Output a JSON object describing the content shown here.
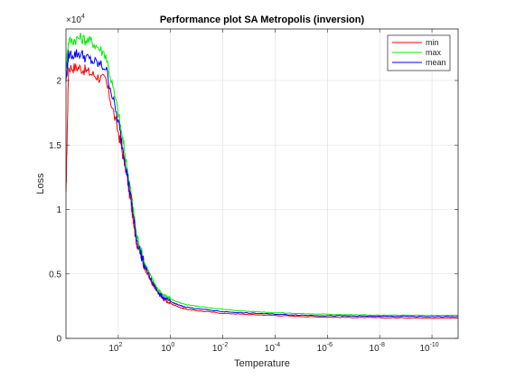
{
  "chart_data": {
    "type": "line",
    "title": "Performance plot SA Metropolis (inversion)",
    "xlabel": "Temperature",
    "ylabel": "Loss",
    "x_scale": "log",
    "x_direction": "reverse",
    "xlim": [
      10000,
      1e-11
    ],
    "ylim": [
      0,
      24000
    ],
    "y_multiplier_label": "×10",
    "y_multiplier_exponent": "4",
    "grid": true,
    "legend_position": "top-right",
    "x_ticks": [
      {
        "base": "10",
        "exp": "2",
        "value": 100
      },
      {
        "base": "10",
        "exp": "0",
        "value": 1
      },
      {
        "base": "10",
        "exp": "-2",
        "value": 0.01
      },
      {
        "base": "10",
        "exp": "-4",
        "value": 0.0001
      },
      {
        "base": "10",
        "exp": "-6",
        "value": 1e-06
      },
      {
        "base": "10",
        "exp": "-8",
        "value": 1e-08
      },
      {
        "base": "10",
        "exp": "-10",
        "value": 1e-10
      }
    ],
    "y_ticks": [
      {
        "label": "0",
        "value": 0
      },
      {
        "label": "0.5",
        "value": 5000
      },
      {
        "label": "1",
        "value": 10000
      },
      {
        "label": "1.5",
        "value": 15000
      },
      {
        "label": "2",
        "value": 20000
      }
    ],
    "x": [
      10000,
      8000,
      3000,
      1000,
      300,
      100,
      50,
      30,
      20,
      10,
      5,
      3,
      2,
      1,
      0.5,
      0.3,
      0.1,
      0.01,
      0.001,
      0.0001,
      1e-05,
      1e-06,
      1e-07,
      1e-08,
      1e-09,
      1e-10,
      1e-11
    ],
    "series": [
      {
        "name": "min",
        "color": "#ff0000",
        "values": [
          11000,
          21000,
          21000,
          20500,
          20000,
          16000,
          13000,
          10000,
          7500,
          5500,
          4200,
          3500,
          3100,
          2700,
          2450,
          2300,
          2150,
          1950,
          1850,
          1780,
          1700,
          1650,
          1620,
          1600,
          1590,
          1580,
          1580
        ]
      },
      {
        "name": "max",
        "color": "#00ee00",
        "values": [
          21000,
          23000,
          23300,
          23000,
          22000,
          17500,
          13800,
          10800,
          8000,
          5900,
          4600,
          3800,
          3400,
          3050,
          2800,
          2650,
          2500,
          2250,
          2100,
          2000,
          1920,
          1870,
          1830,
          1800,
          1790,
          1780,
          1780
        ]
      },
      {
        "name": "mean",
        "color": "#0000ff",
        "values": [
          20000,
          22000,
          22100,
          21500,
          21000,
          16800,
          13300,
          10300,
          7700,
          5700,
          4350,
          3600,
          3200,
          2850,
          2600,
          2450,
          2300,
          2080,
          1960,
          1880,
          1800,
          1760,
          1730,
          1710,
          1700,
          1690,
          1690
        ]
      }
    ]
  }
}
